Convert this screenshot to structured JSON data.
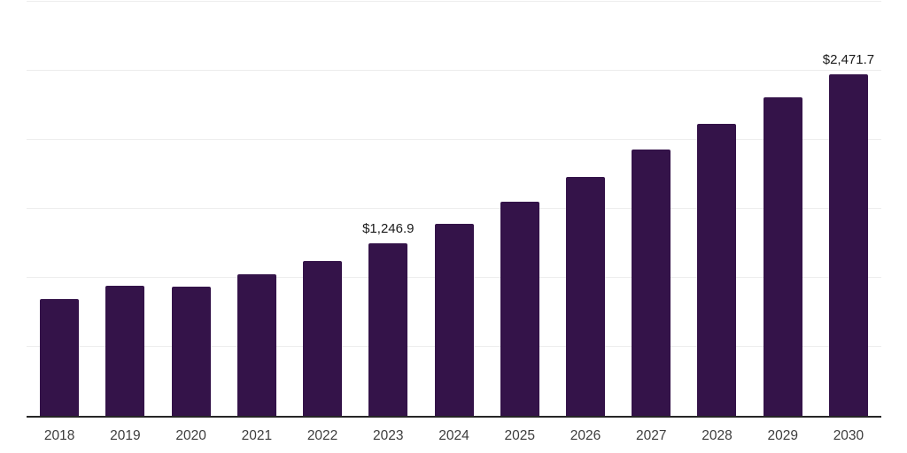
{
  "chart_data": {
    "type": "bar",
    "title": "",
    "xlabel": "",
    "ylabel": "",
    "categories": [
      "2018",
      "2019",
      "2020",
      "2021",
      "2022",
      "2023",
      "2024",
      "2025",
      "2026",
      "2027",
      "2028",
      "2029",
      "2030"
    ],
    "values": [
      845,
      940,
      933,
      1024,
      1120,
      1246.9,
      1394,
      1554,
      1733,
      1931,
      2118,
      2306,
      2471.7
    ],
    "annotations": [
      {
        "category": "2023",
        "text": "$1,246.9"
      },
      {
        "category": "2030",
        "text": "$2,471.7"
      }
    ],
    "ylim": [
      0,
      3000
    ],
    "grid_step": 500,
    "grid": true,
    "legend": false,
    "y_tick_labels_visible": false,
    "colors": {
      "bar": "#341349",
      "gridline": "#ededed",
      "axis": "#262626",
      "tick_label": "#3d3d3d",
      "annotation": "#1a1a1a",
      "background": "#ffffff"
    }
  }
}
